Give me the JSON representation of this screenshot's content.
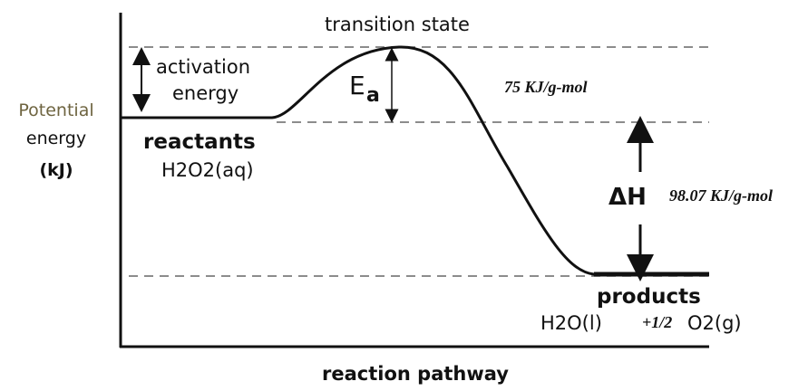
{
  "diagram": {
    "title": "transition state",
    "activation_label": [
      "activation",
      "energy"
    ],
    "ea_label": {
      "main": "E",
      "sub": "a"
    },
    "ea_value": "75 KJ/g-mol",
    "y_axis_label": [
      "Potential",
      "energy",
      "(kJ)"
    ],
    "reactants": {
      "label": "reactants",
      "formula": "H2O2(aq)"
    },
    "delta_h": {
      "label": "ΔH",
      "value": "98.07 KJ/g-mol"
    },
    "products": {
      "label": "products",
      "formula_parts": [
        "H2O(l)",
        "+1/2",
        "O2(g)"
      ]
    },
    "x_axis_label": "reaction pathway"
  }
}
